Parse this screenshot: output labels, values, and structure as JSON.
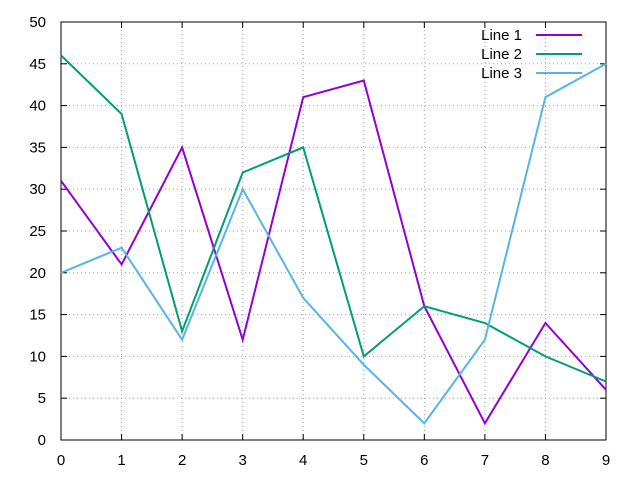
{
  "chart_data": {
    "type": "line",
    "title": "",
    "xlabel": "",
    "ylabel": "",
    "x": [
      0,
      1,
      2,
      3,
      4,
      5,
      6,
      7,
      8,
      9
    ],
    "xlim": [
      0,
      9
    ],
    "ylim": [
      0,
      50
    ],
    "x_ticks": [
      0,
      1,
      2,
      3,
      4,
      5,
      6,
      7,
      8,
      9
    ],
    "y_ticks": [
      0,
      5,
      10,
      15,
      20,
      25,
      30,
      35,
      40,
      45,
      50
    ],
    "grid": true,
    "legend_position": "top-right",
    "series": [
      {
        "name": "Line 1",
        "color": "#9400d3",
        "values": [
          31,
          21,
          35,
          12,
          41,
          43,
          16,
          2,
          14,
          6
        ]
      },
      {
        "name": "Line 2",
        "color": "#009e73",
        "values": [
          46,
          39,
          13,
          32,
          35,
          10,
          16,
          14,
          10,
          7
        ]
      },
      {
        "name": "Line 3",
        "color": "#56b4e9",
        "values": [
          20,
          23,
          12,
          30,
          17,
          9,
          2,
          12,
          41,
          45
        ]
      }
    ]
  }
}
